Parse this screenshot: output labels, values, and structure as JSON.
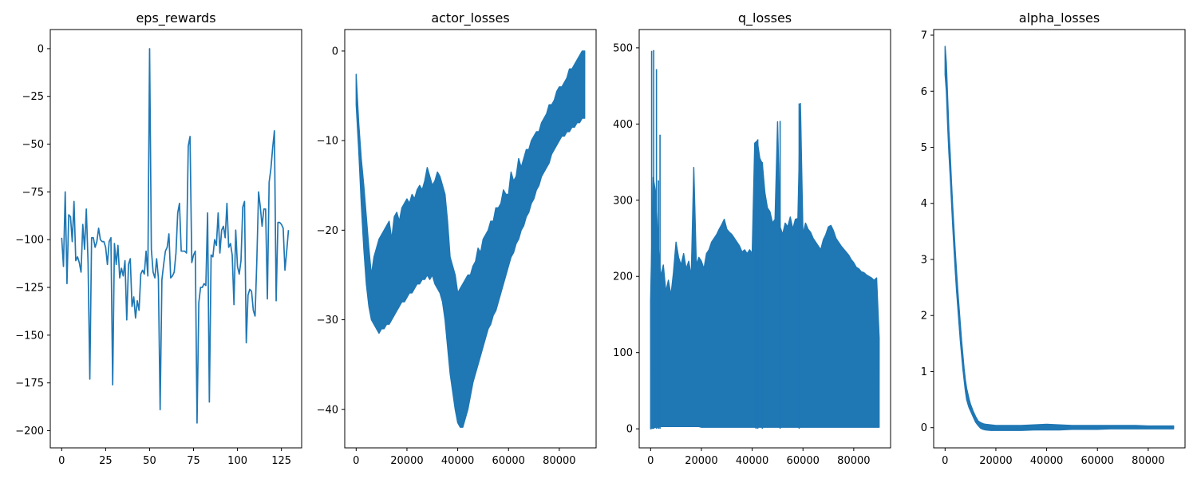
{
  "figure": {
    "background": "#ffffff",
    "line_color": "#1f77b4"
  },
  "chart_data": [
    {
      "type": "line",
      "title": "eps_rewards",
      "xlabel": "",
      "ylabel": "",
      "xlim": [
        -6.5,
        136.5
      ],
      "ylim": [
        -209,
        10
      ],
      "xticks": [
        0,
        25,
        50,
        75,
        100,
        125
      ],
      "yticks": [
        -200,
        -175,
        -150,
        -125,
        -100,
        -75,
        -50,
        -25,
        0
      ],
      "grid": false,
      "series": [
        {
          "mode": "points",
          "x": [
            0,
            1,
            2,
            3,
            4,
            5,
            6,
            7,
            8,
            9,
            10,
            11,
            12,
            13,
            14,
            15,
            16,
            17,
            18,
            19,
            20,
            21,
            22,
            23,
            24,
            25,
            26,
            27,
            28,
            29,
            30,
            31,
            32,
            33,
            34,
            35,
            36,
            37,
            38,
            39,
            40,
            41,
            42,
            43,
            44,
            45,
            46,
            47,
            48,
            49,
            50,
            51,
            52,
            53,
            54,
            55,
            56,
            57,
            58,
            59,
            60,
            61,
            62,
            63,
            64,
            65,
            66,
            67,
            68,
            69,
            70,
            71,
            72,
            73,
            74,
            75,
            76,
            77,
            78,
            79,
            80,
            81,
            82,
            83,
            84,
            85,
            86,
            87,
            88,
            89,
            90,
            91,
            92,
            93,
            94,
            95,
            96,
            97,
            98,
            99,
            100,
            101,
            102,
            103,
            104,
            105,
            106,
            107,
            108,
            109,
            110,
            111,
            112,
            113,
            114,
            115,
            116,
            117,
            118,
            119,
            120,
            121,
            122,
            123,
            124,
            125,
            126,
            127,
            128,
            129
          ],
          "y": [
            -99,
            -114,
            -75,
            -123,
            -87,
            -88,
            -101,
            -80,
            -111,
            -109,
            -112,
            -117,
            -92,
            -105,
            -84,
            -112,
            -173,
            -99,
            -99,
            -104,
            -101,
            -94,
            -100,
            -101,
            -101,
            -104,
            -113,
            -101,
            -99,
            -176,
            -102,
            -113,
            -103,
            -120,
            -115,
            -119,
            -111,
            -142,
            -113,
            -110,
            -135,
            -130,
            -141,
            -132,
            -137,
            -118,
            -116,
            -118,
            -106,
            -119,
            0,
            -105,
            -117,
            -120,
            -110,
            -120,
            -189,
            -121,
            -113,
            -106,
            -104,
            -97,
            -120,
            -119,
            -117,
            -107,
            -86,
            -81,
            -106,
            -106,
            -106,
            -107,
            -51,
            -46,
            -112,
            -108,
            -106,
            -196,
            -133,
            -125,
            -125,
            -123,
            -124,
            -86,
            -185,
            -108,
            -109,
            -100,
            -103,
            -86,
            -107,
            -95,
            -93,
            -99,
            -81,
            -104,
            -102,
            -108,
            -134,
            -95,
            -114,
            -118,
            -111,
            -83,
            -80,
            -154,
            -129,
            -126,
            -127,
            -137,
            -140,
            -111,
            -75,
            -83,
            -93,
            -84,
            -84,
            -131,
            -70,
            -63,
            -52,
            -43,
            -132,
            -91,
            -91,
            -92,
            -94,
            -116,
            -106,
            -95
          ]
        }
      ]
    },
    {
      "type": "line",
      "title": "actor_losses",
      "xlabel": "",
      "ylabel": "",
      "xlim": [
        -4500,
        94500
      ],
      "ylim": [
        -44.3,
        2.4
      ],
      "xticks": [
        0,
        20000,
        40000,
        60000,
        80000
      ],
      "yticks": [
        -40,
        -30,
        -20,
        -10,
        0
      ],
      "grid": false,
      "series": [
        {
          "mode": "band",
          "x": [
            0,
            1000,
            2000,
            3000,
            4000,
            5000,
            6000,
            7000,
            8000,
            9000,
            10000,
            11000,
            12000,
            13000,
            14000,
            15000,
            16000,
            17000,
            18000,
            19000,
            20000,
            21000,
            22000,
            23000,
            24000,
            25000,
            26000,
            27000,
            28000,
            29000,
            30000,
            31000,
            32000,
            33000,
            34000,
            35000,
            36000,
            37000,
            38000,
            39000,
            40000,
            41000,
            42000,
            43000,
            44000,
            45000,
            46000,
            47000,
            48000,
            49000,
            50000,
            51000,
            52000,
            53000,
            54000,
            55000,
            56000,
            57000,
            58000,
            59000,
            60000,
            61000,
            62000,
            63000,
            64000,
            65000,
            66000,
            67000,
            68000,
            69000,
            70000,
            71000,
            72000,
            73000,
            74000,
            75000,
            76000,
            77000,
            78000,
            79000,
            80000,
            81000,
            82000,
            83000,
            84000,
            85000,
            86000,
            87000,
            88000,
            89000,
            90000
          ],
          "upper": [
            -2.6,
            -8,
            -12,
            -15,
            -18.5,
            -22,
            -25,
            -23,
            -22,
            -21,
            -20.5,
            -20,
            -19.5,
            -19,
            -21,
            -18.5,
            -18,
            -19,
            -17.5,
            -17,
            -16.5,
            -17,
            -16,
            -16.5,
            -15.5,
            -15,
            -15.5,
            -14.5,
            -13,
            -14,
            -15,
            -14.5,
            -13.5,
            -14,
            -15,
            -16,
            -19,
            -23,
            -24,
            -25,
            -27,
            -26.5,
            -26,
            -25.5,
            -25,
            -25,
            -24,
            -23.5,
            -22,
            -22.5,
            -21,
            -20.5,
            -20,
            -19,
            -19,
            -17.5,
            -17.5,
            -17,
            -15.5,
            -16,
            -16,
            -13.5,
            -14.5,
            -14,
            -12,
            -13,
            -12,
            -11,
            -11,
            -10,
            -9.5,
            -9,
            -9,
            -8,
            -7.5,
            -7,
            -6,
            -6,
            -5.5,
            -4.5,
            -4,
            -4,
            -3.5,
            -3,
            -2,
            -2,
            -1.5,
            -1,
            -0.5,
            0,
            0
          ],
          "lower": [
            -6,
            -11,
            -17,
            -22,
            -26,
            -28.5,
            -30,
            -30.5,
            -31,
            -31.5,
            -31,
            -31,
            -30.5,
            -30.5,
            -30,
            -29.5,
            -29,
            -28.5,
            -28,
            -28,
            -27.5,
            -27,
            -27,
            -26.5,
            -26,
            -26,
            -25.5,
            -25.5,
            -25,
            -25.5,
            -25,
            -26,
            -26.5,
            -27,
            -28,
            -30,
            -33,
            -36,
            -38,
            -40,
            -41.5,
            -42,
            -42,
            -41,
            -40,
            -38.5,
            -37,
            -36,
            -35,
            -34,
            -33,
            -32,
            -31,
            -30.5,
            -29.5,
            -29,
            -28,
            -27,
            -26,
            -25,
            -24,
            -23,
            -22.5,
            -21.5,
            -21,
            -20,
            -19.5,
            -18.5,
            -18,
            -17,
            -16.5,
            -15.5,
            -15,
            -14,
            -13.5,
            -13,
            -12.5,
            -11.5,
            -11,
            -10.5,
            -10,
            -9.5,
            -9.5,
            -9,
            -9,
            -8.5,
            -8.5,
            -8,
            -8,
            -7.5,
            -7.5
          ]
        }
      ]
    },
    {
      "type": "line",
      "title": "q_losses",
      "xlabel": "",
      "ylabel": "",
      "xlim": [
        -4500,
        94500
      ],
      "ylim": [
        -25,
        524
      ],
      "xticks": [
        0,
        20000,
        40000,
        60000,
        80000
      ],
      "yticks": [
        0,
        100,
        200,
        300,
        400,
        500
      ],
      "grid": false,
      "series": [
        {
          "mode": "band",
          "x": [
            0,
            1000,
            2000,
            3000,
            4000,
            5000,
            6000,
            7000,
            8000,
            9000,
            10000,
            11000,
            12000,
            13000,
            14000,
            15000,
            16000,
            17000,
            18000,
            19000,
            20000,
            21000,
            22000,
            23000,
            24000,
            25000,
            26000,
            27000,
            28000,
            29000,
            30000,
            31000,
            32000,
            33000,
            34000,
            35000,
            36000,
            37000,
            38000,
            39000,
            40000,
            41000,
            42000,
            43000,
            44000,
            45000,
            46000,
            47000,
            48000,
            49000,
            50000,
            51000,
            52000,
            53000,
            54000,
            55000,
            56000,
            57000,
            58000,
            59000,
            60000,
            61000,
            62000,
            63000,
            64000,
            65000,
            66000,
            67000,
            68000,
            69000,
            70000,
            71000,
            72000,
            73000,
            74000,
            75000,
            76000,
            77000,
            78000,
            79000,
            80000,
            81000,
            82000,
            83000,
            84000,
            85000,
            86000,
            87000,
            88000,
            89000,
            90000
          ],
          "upper": [
            170,
            330,
            310,
            240,
            200,
            215,
            180,
            195,
            175,
            205,
            245,
            225,
            215,
            230,
            210,
            220,
            200,
            343,
            215,
            225,
            220,
            210,
            230,
            235,
            245,
            250,
            255,
            262,
            268,
            275,
            262,
            258,
            255,
            250,
            245,
            240,
            232,
            235,
            230,
            235,
            230,
            375,
            378,
            355,
            348,
            310,
            290,
            285,
            270,
            275,
            403,
            265,
            255,
            270,
            265,
            278,
            262,
            275,
            276,
            427,
            255,
            270,
            262,
            258,
            250,
            245,
            240,
            235,
            248,
            255,
            265,
            267,
            260,
            250,
            245,
            240,
            236,
            232,
            228,
            222,
            218,
            212,
            210,
            206,
            205,
            202,
            200,
            198,
            195,
            198,
            120
          ],
          "lower": [
            0,
            1,
            2,
            2,
            3,
            3,
            3,
            3,
            3,
            3,
            3,
            3,
            3,
            3,
            3,
            3,
            3,
            3,
            3,
            3,
            2,
            2,
            2,
            2,
            2,
            2,
            2,
            2,
            2,
            2,
            2,
            2,
            2,
            2,
            2,
            2,
            2,
            2,
            2,
            2,
            2,
            2,
            2,
            2,
            2,
            2,
            2,
            2,
            2,
            2,
            2,
            2,
            2,
            2,
            2,
            2,
            2,
            2,
            2,
            2,
            2,
            2,
            2,
            2,
            2,
            2,
            2,
            2,
            2,
            2,
            2,
            2,
            2,
            2,
            2,
            2,
            2,
            2,
            2,
            2,
            2,
            2,
            2,
            2,
            2,
            2,
            2,
            2,
            2,
            2,
            2
          ],
          "spikes": [
            [
              400,
              496
            ],
            [
              1200,
              497
            ],
            [
              2300,
              472
            ],
            [
              3100,
              326
            ],
            [
              3700,
              386
            ],
            [
              41500,
              376
            ],
            [
              42200,
              380
            ],
            [
              44000,
              350
            ],
            [
              51000,
              404
            ],
            [
              58500,
              427
            ]
          ]
        }
      ]
    },
    {
      "type": "line",
      "title": "alpha_losses",
      "xlabel": "",
      "ylabel": "",
      "xlim": [
        -4500,
        94500
      ],
      "ylim": [
        -0.36,
        7.1
      ],
      "xticks": [
        0,
        20000,
        40000,
        60000,
        80000
      ],
      "yticks": [
        0,
        1,
        2,
        3,
        4,
        5,
        6,
        7
      ],
      "grid": false,
      "series": [
        {
          "mode": "band",
          "x": [
            0,
            500,
            1000,
            1500,
            2000,
            2500,
            3000,
            3500,
            4000,
            4500,
            5000,
            5500,
            6000,
            6500,
            7000,
            7500,
            8000,
            8500,
            9000,
            9500,
            10000,
            11000,
            12000,
            13000,
            14000,
            15000,
            16000,
            18000,
            20000,
            22000,
            25000,
            30000,
            35000,
            40000,
            45000,
            50000,
            55000,
            60000,
            65000,
            70000,
            75000,
            80000,
            85000,
            90000
          ],
          "upper": [
            6.8,
            6.5,
            5.9,
            5.3,
            4.9,
            4.4,
            3.95,
            3.55,
            3.15,
            2.8,
            2.45,
            2.15,
            1.85,
            1.55,
            1.3,
            1.05,
            0.85,
            0.7,
            0.6,
            0.5,
            0.42,
            0.3,
            0.2,
            0.12,
            0.09,
            0.07,
            0.06,
            0.05,
            0.04,
            0.04,
            0.04,
            0.04,
            0.05,
            0.06,
            0.05,
            0.04,
            0.04,
            0.04,
            0.04,
            0.04,
            0.04,
            0.03,
            0.03,
            0.03
          ],
          "lower": [
            6.3,
            6.0,
            5.4,
            4.9,
            4.5,
            4.05,
            3.6,
            3.2,
            2.8,
            2.45,
            2.15,
            1.85,
            1.55,
            1.3,
            1.05,
            0.85,
            0.65,
            0.5,
            0.42,
            0.35,
            0.3,
            0.2,
            0.1,
            0.04,
            -0.01,
            -0.03,
            -0.04,
            -0.05,
            -0.05,
            -0.05,
            -0.05,
            -0.05,
            -0.04,
            -0.04,
            -0.04,
            -0.03,
            -0.03,
            -0.03,
            -0.02,
            -0.02,
            -0.02,
            -0.02,
            -0.02,
            -0.02
          ]
        }
      ]
    }
  ]
}
